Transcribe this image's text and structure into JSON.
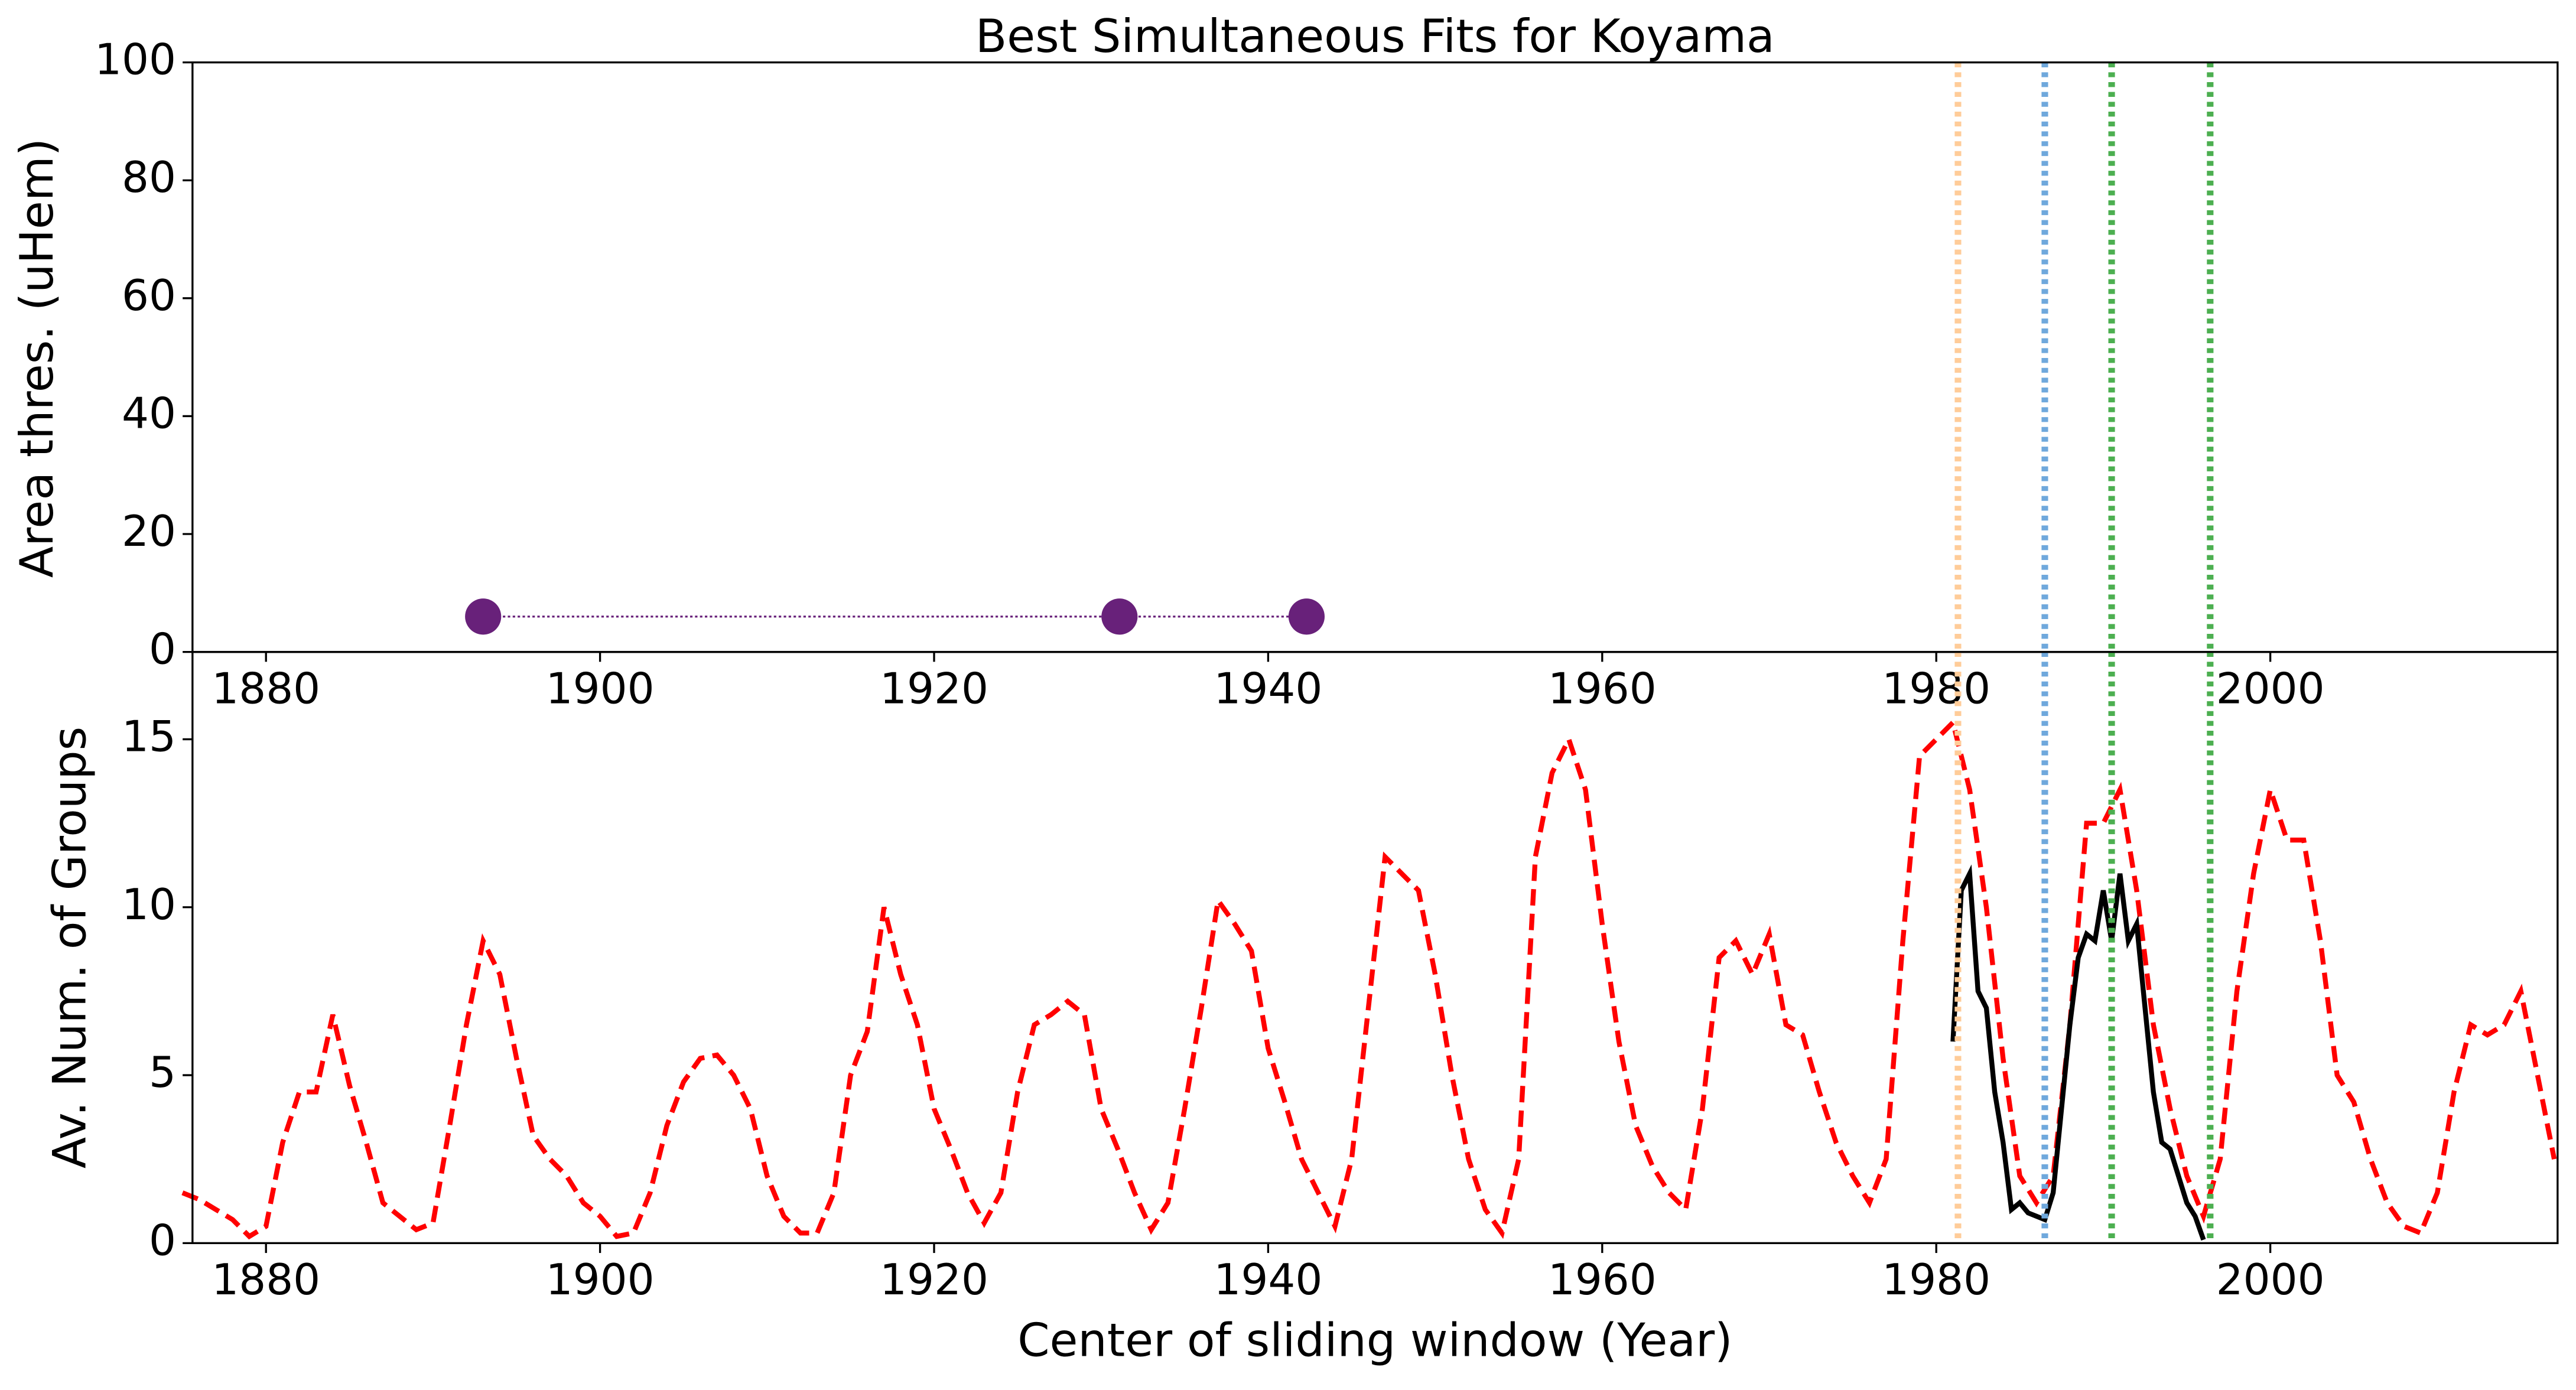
{
  "chart_data": [
    {
      "type": "line",
      "title": "Best Simultaneous Fits for Koyama",
      "ylabel": "Area thres. (uHem)",
      "series": [
        {
          "x": [
            1893.0,
            1931.1,
            1942.3
          ],
          "values": [
            6,
            6,
            6
          ],
          "color": "#68217a",
          "linestyle": "dotted",
          "marker": true
        }
      ],
      "xlim": [
        1875.6,
        2017.2
      ],
      "xticks": [
        1880,
        1900,
        1920,
        1940,
        1960,
        1980,
        2000
      ],
      "ylim": [
        0,
        100
      ],
      "yticks": [
        0,
        20,
        40,
        60,
        80,
        100
      ],
      "vlines": [
        {
          "x": 1981.3,
          "color": "#ffcc99"
        },
        {
          "x": 1986.5,
          "color": "#6fa8dc"
        },
        {
          "x": 1990.5,
          "color": "#4caf50"
        },
        {
          "x": 1996.4,
          "color": "#4caf50"
        }
      ]
    },
    {
      "type": "line",
      "xlabel": "Center of sliding window (Year)",
      "ylabel": "Av. Num. of Groups",
      "series": [
        {
          "x": [
            1875,
            1876,
            1877,
            1878,
            1879,
            1880,
            1881,
            1882,
            1883,
            1884,
            1885,
            1886,
            1887,
            1888,
            1889,
            1890,
            1891,
            1892,
            1893,
            1894,
            1895,
            1896,
            1897,
            1898,
            1899,
            1900,
            1901,
            1902,
            1903,
            1904,
            1905,
            1906,
            1907,
            1908,
            1909,
            1910,
            1911,
            1912,
            1913,
            1914,
            1915,
            1916,
            1917,
            1918,
            1919,
            1920,
            1921,
            1922,
            1923,
            1924,
            1925,
            1926,
            1927,
            1928,
            1929,
            1930,
            1931,
            1932,
            1933,
            1934,
            1935,
            1936,
            1937,
            1938,
            1939,
            1940,
            1941,
            1942,
            1943,
            1944,
            1945,
            1946,
            1947,
            1948,
            1949,
            1950,
            1951,
            1952,
            1953,
            1954,
            1955,
            1956,
            1957,
            1958,
            1959,
            1960,
            1961,
            1962,
            1963,
            1964,
            1965,
            1966,
            1967,
            1968,
            1969,
            1970,
            1971,
            1972,
            1973,
            1974,
            1975,
            1976,
            1977,
            1978,
            1979,
            1980,
            1981,
            1982,
            1983,
            1984,
            1985,
            1986,
            1987,
            1988,
            1989,
            1990,
            1991,
            1992,
            1993,
            1994,
            1995,
            1996,
            1997,
            1998,
            1999,
            2000,
            2001,
            2002,
            2003,
            2004,
            2005,
            2006,
            2007,
            2008,
            2009,
            2010,
            2011,
            2012,
            2013,
            2014,
            2015,
            2016,
            2017
          ],
          "values": [
            1.5,
            1.3,
            1.0,
            0.7,
            0.2,
            0.5,
            3.0,
            4.5,
            4.5,
            6.8,
            4.7,
            3.0,
            1.2,
            0.8,
            0.4,
            0.6,
            3.5,
            6.5,
            9.0,
            8.0,
            5.5,
            3.2,
            2.5,
            2.0,
            1.2,
            0.8,
            0.2,
            0.3,
            1.5,
            3.5,
            4.8,
            5.5,
            5.6,
            5.0,
            4.0,
            2.0,
            0.8,
            0.3,
            0.3,
            1.5,
            5.0,
            6.3,
            10.0,
            8.0,
            6.5,
            4.0,
            2.8,
            1.5,
            0.6,
            1.5,
            4.5,
            6.5,
            6.8,
            7.2,
            6.8,
            4.0,
            2.8,
            1.5,
            0.4,
            1.2,
            4.0,
            7.0,
            10.2,
            9.5,
            8.7,
            5.8,
            4.2,
            2.5,
            1.5,
            0.5,
            2.5,
            7.0,
            11.5,
            11.0,
            10.5,
            8.0,
            5.0,
            2.5,
            1.0,
            0.3,
            2.5,
            11.5,
            14.0,
            15.0,
            13.5,
            9.5,
            6.0,
            3.5,
            2.3,
            1.5,
            1.0,
            4.0,
            8.5,
            9.0,
            8.0,
            9.2,
            6.5,
            6.2,
            4.5,
            3.0,
            2.0,
            1.2,
            2.5,
            9.0,
            14.5,
            15.0,
            15.5,
            13.5,
            10.0,
            5.5,
            2.0,
            1.2,
            2.0,
            6.5,
            12.5,
            12.5,
            13.5,
            10.5,
            6.5,
            4.0,
            2.0,
            0.8,
            2.5,
            7.5,
            11.0,
            13.5,
            12.0,
            12.0,
            9.0,
            5.0,
            4.2,
            2.5,
            1.2,
            0.5,
            0.3,
            1.5,
            4.5,
            6.5,
            6.2,
            6.5,
            7.5,
            5.0,
            2.5
          ],
          "color": "#ff0000",
          "linestyle": "dashed"
        },
        {
          "x": [
            1981,
            1981.5,
            1982,
            1982.5,
            1983,
            1983.5,
            1984,
            1984.5,
            1985,
            1985.5,
            1986,
            1986.5,
            1987,
            1987.5,
            1988,
            1988.5,
            1989,
            1989.5,
            1990,
            1990.5,
            1991,
            1991.5,
            1992,
            1992.5,
            1993,
            1993.5,
            1994,
            1994.5,
            1995,
            1995.5,
            1996
          ],
          "values": [
            6.0,
            10.5,
            11.0,
            7.5,
            7.0,
            4.5,
            3.0,
            1.0,
            1.2,
            0.9,
            0.8,
            0.7,
            1.5,
            4.0,
            6.5,
            8.5,
            9.2,
            9.0,
            10.5,
            9.0,
            11.0,
            9.0,
            9.5,
            7.0,
            4.5,
            3.0,
            2.8,
            2.0,
            1.2,
            0.8,
            0.1
          ],
          "color": "#000000",
          "linestyle": "solid"
        }
      ],
      "xlim": [
        1875.6,
        2017.2
      ],
      "xticks": [
        1880,
        1900,
        1920,
        1940,
        1960,
        1980,
        2000
      ],
      "ylim": [
        0,
        17.6
      ],
      "yticks": [
        0,
        5,
        10,
        15
      ],
      "vlines": [
        {
          "x": 1981.3,
          "color": "#ffcc99"
        },
        {
          "x": 1986.5,
          "color": "#6fa8dc"
        },
        {
          "x": 1990.5,
          "color": "#4caf50"
        },
        {
          "x": 1996.4,
          "color": "#4caf50"
        }
      ]
    }
  ]
}
